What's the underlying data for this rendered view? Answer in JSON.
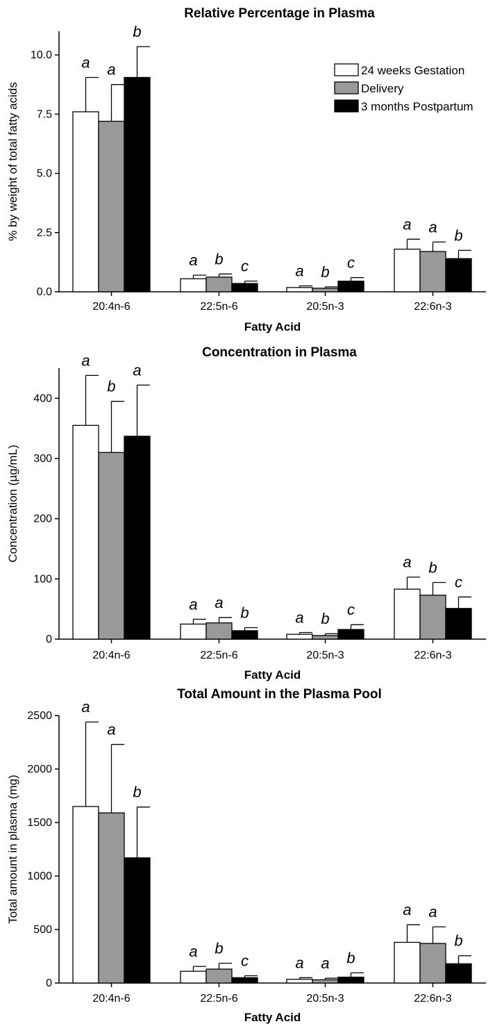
{
  "figure": {
    "legend": {
      "placement": "top-right of first panel",
      "entries": [
        {
          "label": "24 weeks Gestation",
          "color": "#ffffff"
        },
        {
          "label": "Delivery",
          "color": "#999999"
        },
        {
          "label": "3 months Postpartum",
          "color": "#000000"
        }
      ]
    }
  },
  "chart_data": [
    {
      "type": "bar",
      "title": "Relative Percentage in Plasma",
      "xlabel": "Fatty Acid",
      "ylabel": "% by weight of total fatty acids",
      "ylim": [
        0,
        11
      ],
      "yticks": [
        "0.0",
        "2.5",
        "5.0",
        "7.5",
        "10.0"
      ],
      "ytick_values": [
        0,
        2.5,
        5,
        7.5,
        10
      ],
      "categories": [
        "20:4n-6",
        "22:5n-6",
        "20:5n-3",
        "22:6n-3"
      ],
      "series": [
        {
          "name": "24 weeks Gestation",
          "values": [
            7.6,
            0.55,
            0.18,
            1.8
          ],
          "errors": [
            1.45,
            0.15,
            0.07,
            0.42
          ],
          "labels": [
            "a",
            "a",
            "a",
            "a"
          ]
        },
        {
          "name": "Delivery",
          "values": [
            7.2,
            0.62,
            0.15,
            1.7
          ],
          "errors": [
            1.55,
            0.13,
            0.06,
            0.4
          ],
          "labels": [
            "a",
            "b",
            "b",
            "a"
          ]
        },
        {
          "name": "3 months Postpartum",
          "values": [
            9.05,
            0.35,
            0.45,
            1.4
          ],
          "errors": [
            1.3,
            0.1,
            0.15,
            0.35
          ],
          "labels": [
            "b",
            "c",
            "c",
            "b"
          ]
        }
      ]
    },
    {
      "type": "bar",
      "title": "Concentration in Plasma",
      "xlabel": "Fatty Acid",
      "ylabel": "Concentration (µg/mL)",
      "ylim": [
        0,
        450
      ],
      "yticks": [
        "0",
        "100",
        "200",
        "300",
        "400"
      ],
      "ytick_values": [
        0,
        100,
        200,
        300,
        400
      ],
      "categories": [
        "20:4n-6",
        "22:5n-6",
        "20:5n-3",
        "22:6n-3"
      ],
      "series": [
        {
          "name": "24 weeks Gestation",
          "values": [
            355,
            25,
            8,
            83
          ],
          "errors": [
            83,
            8,
            3,
            20
          ],
          "labels": [
            "a",
            "a",
            "a",
            "a"
          ]
        },
        {
          "name": "Delivery",
          "values": [
            310,
            27,
            6,
            73
          ],
          "errors": [
            85,
            9,
            3,
            21
          ],
          "labels": [
            "b",
            "a",
            "b",
            "b"
          ]
        },
        {
          "name": "3 months Postpartum",
          "values": [
            337,
            14,
            16,
            51
          ],
          "errors": [
            85,
            5,
            8,
            19
          ],
          "labels": [
            "a",
            "b",
            "c",
            "c"
          ]
        }
      ]
    },
    {
      "type": "bar",
      "title": "Total Amount in the Plasma Pool",
      "xlabel": "Fatty Acid",
      "ylabel": "Total amount in plasma (mg)",
      "ylim": [
        0,
        2500
      ],
      "yticks": [
        "0",
        "500",
        "1000",
        "1500",
        "2000",
        "2500"
      ],
      "ytick_values": [
        0,
        500,
        1000,
        1500,
        2000,
        2500
      ],
      "categories": [
        "20:4n-6",
        "22:5n-6",
        "20:5n-3",
        "22:6n-3"
      ],
      "series": [
        {
          "name": "24 weeks Gestation",
          "values": [
            1650,
            110,
            35,
            380
          ],
          "errors": [
            790,
            45,
            15,
            165
          ],
          "labels": [
            "a",
            "a",
            "a",
            "a"
          ]
        },
        {
          "name": "Delivery",
          "values": [
            1590,
            130,
            30,
            370
          ],
          "errors": [
            640,
            55,
            15,
            155
          ],
          "labels": [
            "a",
            "b",
            "a",
            "a"
          ]
        },
        {
          "name": "3 months Postpartum",
          "values": [
            1170,
            50,
            55,
            180
          ],
          "errors": [
            475,
            18,
            40,
            75
          ],
          "labels": [
            "b",
            "c",
            "b",
            "b"
          ]
        }
      ]
    }
  ]
}
